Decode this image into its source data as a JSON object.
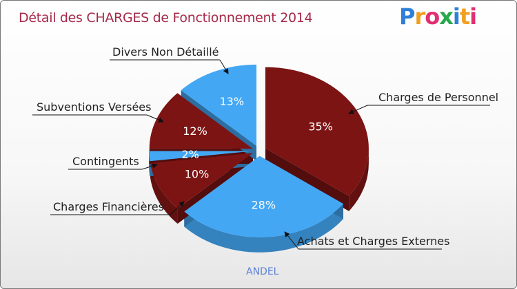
{
  "chart_data": {
    "type": "pie",
    "title": "Détail des CHARGES de Fonctionnement 2014",
    "subtitle": "ANDEL",
    "slices": [
      {
        "label": "Charges de Personnel",
        "value": 35,
        "display": "35%",
        "color": "#7d1414"
      },
      {
        "label": "Achats et Charges Externes",
        "value": 28,
        "display": "28%",
        "color": "#43a7f4"
      },
      {
        "label": "Charges Financières",
        "value": 10,
        "display": "10%",
        "color": "#7d1414"
      },
      {
        "label": "Contingents",
        "value": 2,
        "display": "2%",
        "color": "#43a7f4"
      },
      {
        "label": "Subventions Versées",
        "value": 12,
        "display": "12%",
        "color": "#7d1414"
      },
      {
        "label": "Divers Non Détaillé",
        "value": 13,
        "display": "13%",
        "color": "#43a7f4"
      }
    ]
  },
  "logo": {
    "text": "Proxiti",
    "letters": [
      {
        "ch": "P",
        "color": "#2e7fd8"
      },
      {
        "ch": "r",
        "color": "#f0a020"
      },
      {
        "ch": "o",
        "color": "#e03070"
      },
      {
        "ch": "x",
        "color": "#27a84a"
      },
      {
        "ch": "i",
        "color": "#2e7fd8"
      },
      {
        "ch": "t",
        "color": "#f0a020"
      },
      {
        "ch": "i",
        "color": "#e03070"
      }
    ]
  }
}
